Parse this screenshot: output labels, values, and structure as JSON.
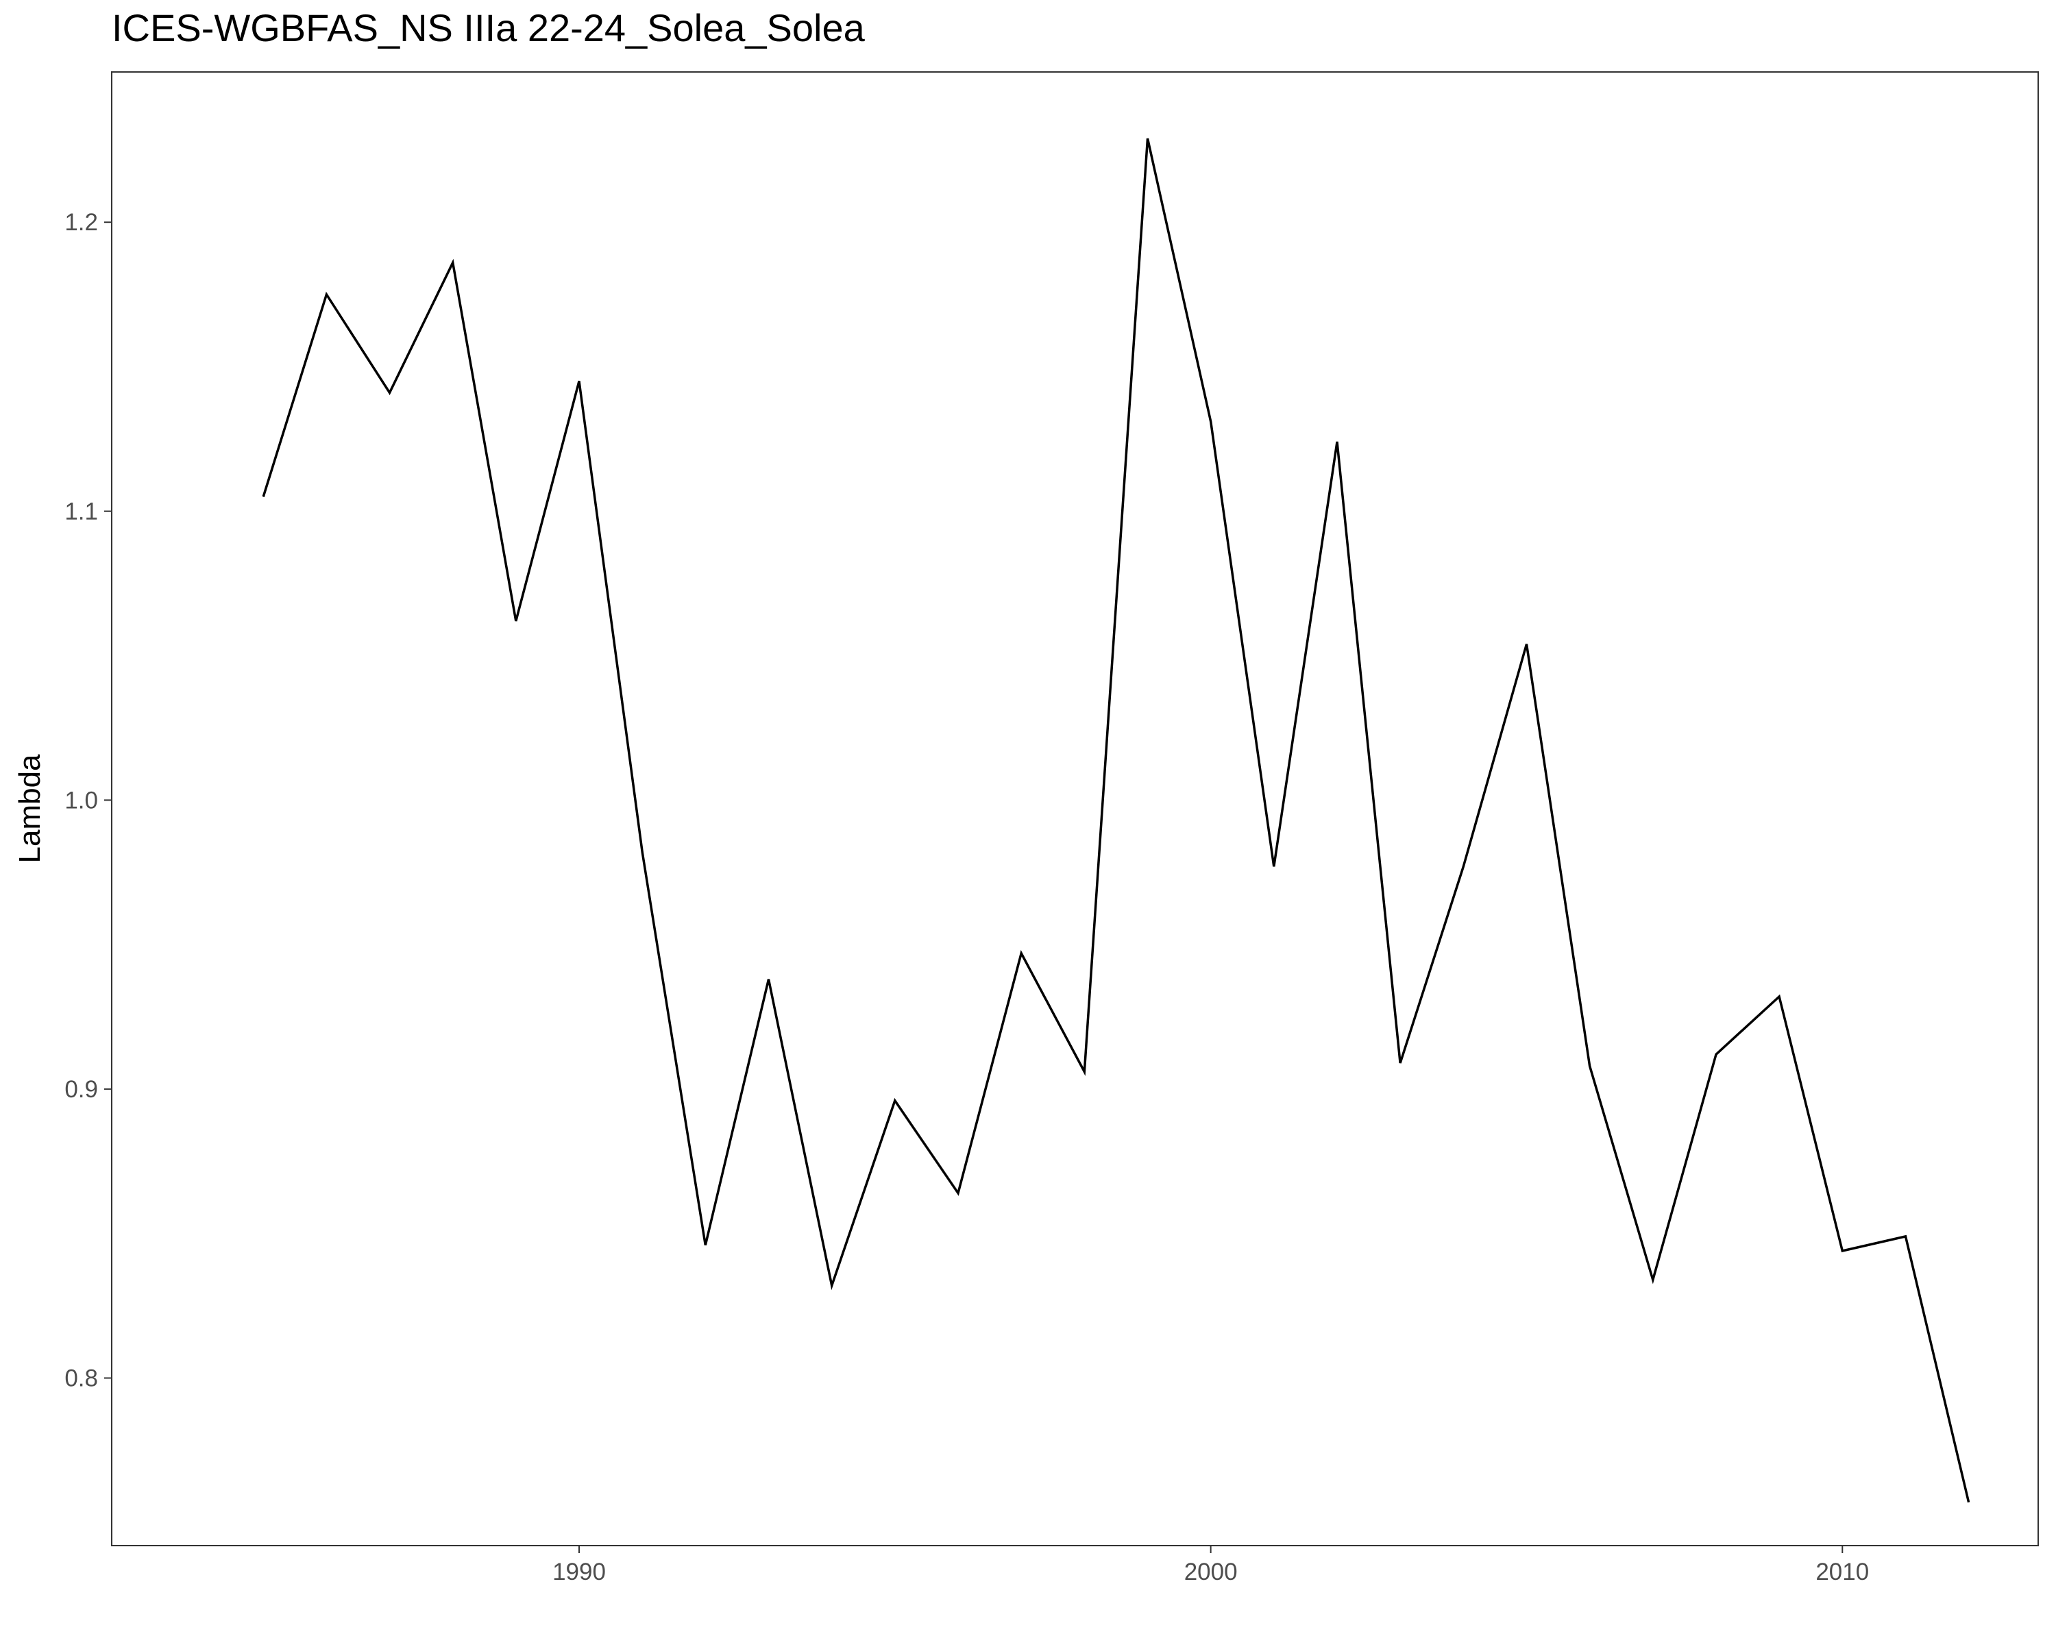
{
  "chart_data": {
    "type": "line",
    "title": "ICES-WGBFAS_NS IIIa 22-24_Solea_Solea",
    "xlabel": "",
    "ylabel": "Lambda",
    "xlim": [
      1982.6,
      2013.1
    ],
    "ylim": [
      0.742,
      1.252
    ],
    "x_ticks": [
      1990,
      2000,
      2010
    ],
    "y_ticks": [
      0.8,
      0.9,
      1.0,
      1.1,
      1.2
    ],
    "x_tick_labels": [
      "1990",
      "2000",
      "2010"
    ],
    "y_tick_labels": [
      "0.8",
      "0.9",
      "1.0",
      "1.1",
      "1.2"
    ],
    "grid": false,
    "line_color": "#000000",
    "series": [
      {
        "x": [
          1985,
          1986,
          1987,
          1988,
          1989,
          1990,
          1991,
          1992,
          1993,
          1994,
          1995,
          1996,
          1997,
          1998,
          1999,
          2000,
          2001,
          2002,
          2003,
          2004,
          2005,
          2006,
          2007,
          2008,
          2009,
          2010,
          2011,
          2012
        ],
        "values": [
          1.105,
          1.175,
          1.141,
          1.186,
          1.062,
          1.145,
          0.982,
          0.846,
          0.938,
          0.832,
          0.896,
          0.864,
          0.947,
          0.906,
          1.229,
          1.131,
          0.977,
          1.124,
          0.909,
          0.977,
          1.054,
          0.908,
          0.834,
          0.912,
          0.932,
          0.844,
          0.849,
          0.757
        ]
      }
    ]
  }
}
